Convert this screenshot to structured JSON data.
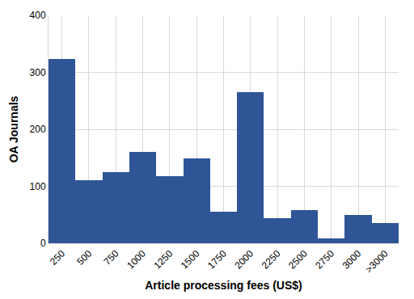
{
  "chart_data": {
    "type": "bar",
    "x_label": "Article processing fees (US$)",
    "y_label": "OA Journals",
    "categories": [
      "250",
      "500",
      "750",
      "1000",
      "1250",
      "1500",
      "1750",
      "2000",
      "2250",
      "2500",
      "2750",
      "3000",
      ">3000"
    ],
    "values": [
      323,
      110,
      125,
      160,
      118,
      149,
      55,
      265,
      44,
      58,
      8,
      50,
      35
    ],
    "color": "#2f5597",
    "ylim": [
      0,
      400
    ],
    "yticks": [
      0,
      100,
      200,
      300,
      400
    ],
    "grid": true
  }
}
